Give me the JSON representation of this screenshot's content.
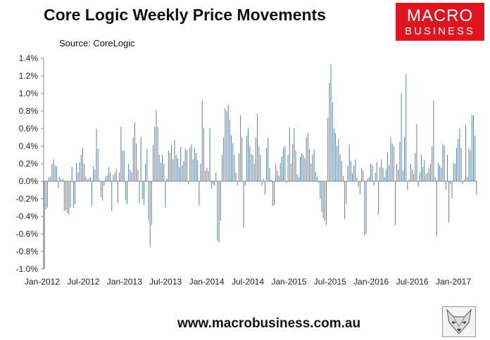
{
  "chart_data": {
    "type": "bar",
    "title": "Core Logic Weekly Price Movements",
    "source": "Source: CoreLogic",
    "ylabel": "",
    "xlabel": "",
    "ylim": [
      -1.0,
      1.4
    ],
    "yticks": [
      "1.4%",
      "1.2%",
      "1.0%",
      "0.8%",
      "0.6%",
      "0.4%",
      "0.2%",
      "0.0%",
      "-0.2%",
      "-0.4%",
      "-0.6%",
      "-0.8%",
      "-1.0%"
    ],
    "xticks": [
      "Jan-2012",
      "Jul-2012",
      "Jan-2013",
      "Jul-2013",
      "Jan-2014",
      "Jul-2014",
      "Jan-2015",
      "Jul-2015",
      "Jan-2016",
      "Jul-2016",
      "Jan-2017"
    ],
    "bar_color": "#5a7fa8",
    "grid": false,
    "values": [
      -1.0,
      -0.32,
      -0.3,
      0.05,
      0.05,
      0.2,
      0.25,
      0.18,
      0.17,
      -0.08,
      0.05,
      0.02,
      0.03,
      -0.34,
      -0.33,
      -0.36,
      -0.38,
      -0.3,
      0.16,
      -0.3,
      -0.26,
      0.21,
      0.1,
      0.22,
      0.3,
      0.38,
      0.2,
      0.05,
      0.02,
      0.03,
      0.05,
      -0.28,
      0.17,
      0.13,
      0.6,
      0.37,
      0.02,
      -0.18,
      -0.22,
      -0.05,
      0.06,
      0.07,
      0.16,
      0.1,
      -0.34,
      0.07,
      0.1,
      0.14,
      -0.25,
      0.1,
      0.62,
      0.35,
      0.35,
      -0.22,
      -0.26,
      0.2,
      0.13,
      0.1,
      0.5,
      0.67,
      0.43,
      0.13,
      -0.25,
      0.5,
      -0.2,
      -0.27,
      0.2,
      0.37,
      -0.45,
      -0.75,
      -0.5,
      0.41,
      0.62,
      0.81,
      0.62,
      0.3,
      0.21,
      0.3,
      0.2,
      -0.3,
      0.03,
      0.35,
      0.32,
      0.41,
      0.25,
      0.47,
      0.3,
      0.26,
      0.16,
      0.39,
      0.18,
      0.23,
      0.37,
      0.35,
      -0.03,
      0.38,
      0.42,
      0.25,
      0.38,
      0.32,
      0.24,
      -0.28,
      0.2,
      0.92,
      0.6,
      0.12,
      0.15,
      0.12,
      0.6,
      -0.08,
      -0.03,
      -0.05,
      0.1,
      -0.68,
      -0.7,
      -0.45,
      0.3,
      0.5,
      0.83,
      0.8,
      0.87,
      0.7,
      0.52,
      0.43,
      0.3,
      0.1,
      -0.05,
      0.32,
      0.75,
      0.5,
      -0.53,
      -0.05,
      0.52,
      0.6,
      0.4,
      0.31,
      0.3,
      0.2,
      0.5,
      0.77,
      0.4,
      0.3,
      -0.05,
      0.03,
      -0.15,
      0.38,
      0.5,
      0.15,
      0.02,
      -0.28,
      -0.27,
      0.2,
      0.12,
      0.06,
      0.21,
      0.28,
      0.38,
      0.4,
      -0.02,
      0.3,
      0.61,
      0.2,
      0.42,
      0.6,
      0.35,
      0.08,
      0.05,
      0.28,
      0.32,
      0.3,
      0.26,
      0.5,
      0.55,
      0.37,
      0.2,
      0.3,
      0.36,
      0.11,
      0.05,
      -0.02,
      -0.2,
      -0.35,
      -0.42,
      -0.45,
      -0.5,
      0.72,
      1.12,
      1.33,
      0.9,
      0.6,
      0.55,
      0.4,
      0.48,
      0.3,
      0.23,
      0.06,
      -0.43,
      -0.26,
      0.17,
      0.42,
      0.23,
      0.09,
      0.18,
      0.25,
      0.04,
      -0.06,
      -0.15,
      0.15,
      0.12,
      -0.62,
      -0.6,
      0.03,
      0.05,
      0.2,
      0.18,
      -0.05,
      0.1,
      0.22,
      -0.38,
      0.16,
      0.25,
      0.15,
      0.05,
      0.14,
      0.33,
      0.18,
      0.5,
      0.43,
      0.4,
      -0.5,
      0.2,
      0.13,
      0.45,
      1.0,
      0.12,
      0.5,
      1.22,
      -0.1,
      0.02,
      0.2,
      0.13,
      0.08,
      0.32,
      0.65,
      -0.06,
      0.1,
      0.3,
      0.16,
      0.24,
      0.08,
      0.1,
      0.15,
      0.2,
      0.4,
      0.92,
      0.05,
      -0.63,
      0.21,
      0.18,
      0.15,
      0.42,
      0.41,
      -0.1,
      0.3,
      -0.47,
      -0.03,
      -0.2,
      0.21,
      0.2,
      0.38,
      0.48,
      0.6,
      0.38,
      -0.03,
      0.02,
      0.64,
      0.05,
      0.38,
      0.35,
      0.75,
      0.75,
      0.52,
      -0.15
    ]
  },
  "logo": {
    "line1": "MACRO",
    "line2": "BUSINESS"
  },
  "footer": {
    "url": "www.macrobusiness.com.au"
  },
  "fox_image": {
    "icon": "fox-logo-icon"
  }
}
